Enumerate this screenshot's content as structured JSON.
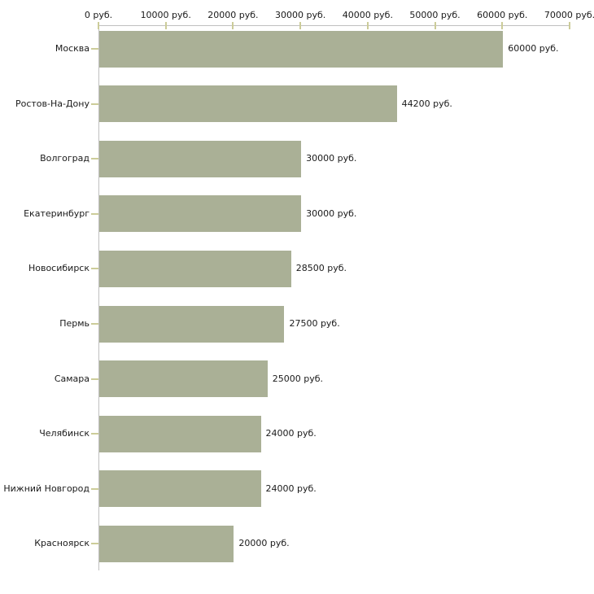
{
  "chart_data": {
    "type": "bar",
    "orientation": "horizontal",
    "title": "",
    "xlabel": "",
    "ylabel": "",
    "categories": [
      "Москва",
      "Ростов-На-Дону",
      "Волгоград",
      "Екатеринбург",
      "Новосибирск",
      "Пермь",
      "Самара",
      "Челябинск",
      "Нижний Новгород",
      "Красноярск"
    ],
    "values": [
      60000,
      44200,
      30000,
      30000,
      28500,
      27500,
      25000,
      24000,
      24000,
      20000
    ],
    "value_labels": [
      "60000 руб.",
      "44200 руб.",
      "30000 руб.",
      "30000 руб.",
      "28500 руб.",
      "27500 руб.",
      "25000 руб.",
      "24000 руб.",
      "24000 руб.",
      "20000 руб."
    ],
    "xlim": [
      0,
      70000
    ],
    "x_ticks": [
      {
        "value": 0,
        "label": "0 руб."
      },
      {
        "value": 10000,
        "label": "10000 руб."
      },
      {
        "value": 20000,
        "label": "20000 руб."
      },
      {
        "value": 30000,
        "label": "30000 руб."
      },
      {
        "value": 40000,
        "label": "40000 руб."
      },
      {
        "value": 50000,
        "label": "50000 руб."
      },
      {
        "value": 60000,
        "label": "60000 руб."
      },
      {
        "value": 70000,
        "label": "70000 руб."
      }
    ],
    "axis_position": "top",
    "grid": false,
    "legend": false,
    "colors": {
      "bar": "#aab096",
      "axis_line": "#c0c0c0",
      "tick": "#cccc99",
      "text": "#1a1a1a",
      "background": "#ffffff"
    }
  }
}
